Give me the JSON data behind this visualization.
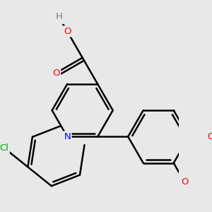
{
  "bg_color": "#e8e8e8",
  "bond_color": "#000000",
  "bond_width": 1.8,
  "atom_colors": {
    "N": "#0000ff",
    "O": "#ff0000",
    "Cl": "#00aa00",
    "H": "#808080",
    "C": "#000000"
  },
  "font_size": 9.5,
  "bl": 0.52
}
